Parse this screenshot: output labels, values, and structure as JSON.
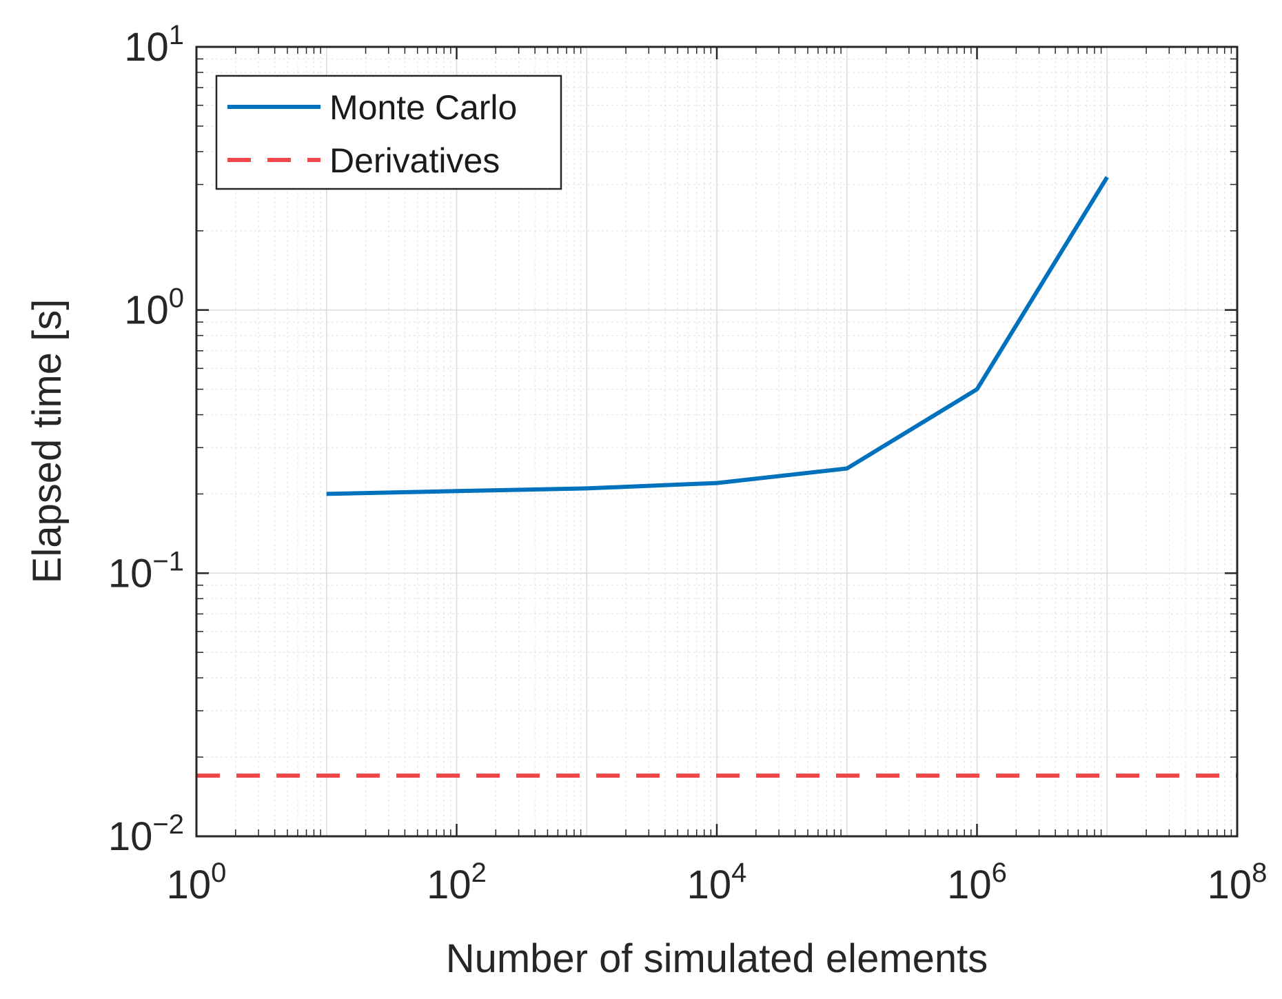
{
  "chart_data": {
    "type": "line",
    "title": "",
    "xlabel": "Number of simulated elements",
    "ylabel": "Elapsed time [s]",
    "xscale": "log",
    "yscale": "log",
    "xlim": [
      1,
      100000000
    ],
    "ylim": [
      0.01,
      10
    ],
    "grid": true,
    "minor_grid": true,
    "legend_position": "top-left",
    "x_ticks": [
      {
        "base": "10",
        "exp": "0",
        "value": 1
      },
      {
        "base": "10",
        "exp": "2",
        "value": 100
      },
      {
        "base": "10",
        "exp": "4",
        "value": 10000
      },
      {
        "base": "10",
        "exp": "6",
        "value": 1000000
      },
      {
        "base": "10",
        "exp": "8",
        "value": 100000000
      }
    ],
    "y_ticks": [
      {
        "base": "10",
        "exp": "−2",
        "value": 0.01
      },
      {
        "base": "10",
        "exp": "−1",
        "value": 0.1
      },
      {
        "base": "10",
        "exp": "0",
        "value": 1
      },
      {
        "base": "10",
        "exp": "1",
        "value": 10
      }
    ],
    "series": [
      {
        "name": "Monte Carlo",
        "style": "solid",
        "color": "#0072BD",
        "x": [
          10,
          100,
          1000,
          10000,
          100000,
          1000000,
          10000000
        ],
        "y": [
          0.2,
          0.205,
          0.21,
          0.22,
          0.25,
          0.5,
          3.2
        ]
      },
      {
        "name": "Derivatives",
        "style": "dashed",
        "color": "#F0484A",
        "x": [
          1,
          100000000
        ],
        "y": [
          0.017,
          0.017
        ]
      }
    ]
  }
}
